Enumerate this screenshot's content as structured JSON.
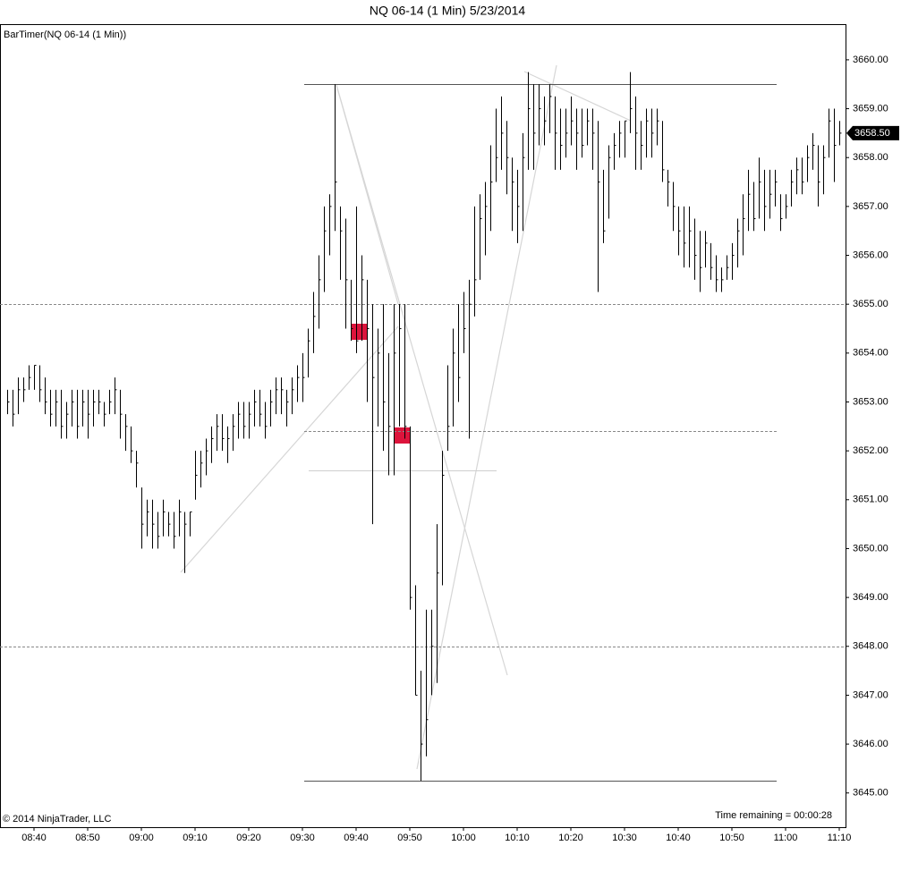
{
  "chart_data": {
    "type": "ohlc",
    "title": "NQ 06-14 (1 Min)  5/23/2014",
    "indicator": "BarTimer(NQ 06-14 (1 Min))",
    "copyright": "© 2014 NinjaTrader, LLC",
    "time_remaining": "Time remaining = 00:00:28",
    "color": "#000000",
    "ylim": [
      3644.3,
      3660.73
    ],
    "yticks": [
      {
        "value": 3645,
        "label": "3645.00"
      },
      {
        "value": 3646,
        "label": "3646.00"
      },
      {
        "value": 3647,
        "label": "3647.00"
      },
      {
        "value": 3648,
        "label": "3648.00"
      },
      {
        "value": 3649,
        "label": "3649.00"
      },
      {
        "value": 3650,
        "label": "3650.00"
      },
      {
        "value": 3651,
        "label": "3651.00"
      },
      {
        "value": 3652,
        "label": "3652.00"
      },
      {
        "value": 3653,
        "label": "3653.00"
      },
      {
        "value": 3654,
        "label": "3654.00"
      },
      {
        "value": 3655,
        "label": "3655.00"
      },
      {
        "value": 3656,
        "label": "3656.00"
      },
      {
        "value": 3657,
        "label": "3657.00"
      },
      {
        "value": 3658,
        "label": "3658.00"
      },
      {
        "value": 3659,
        "label": "3659.00"
      },
      {
        "value": 3660,
        "label": "3660.00"
      }
    ],
    "last_price": {
      "value": 3658.5,
      "label": "3658.50"
    },
    "categories": [
      null,
      null,
      null,
      null,
      null,
      "08:40",
      null,
      null,
      null,
      null,
      null,
      null,
      null,
      null,
      null,
      "08:50",
      null,
      null,
      null,
      null,
      null,
      null,
      null,
      null,
      null,
      "09:00",
      null,
      null,
      null,
      null,
      null,
      null,
      null,
      null,
      null,
      "09:10",
      null,
      null,
      null,
      null,
      null,
      null,
      null,
      null,
      null,
      "09:20",
      null,
      null,
      null,
      null,
      null,
      null,
      null,
      null,
      null,
      "09:30",
      null,
      null,
      null,
      null,
      null,
      null,
      null,
      null,
      null,
      "09:40",
      null,
      null,
      null,
      null,
      null,
      null,
      null,
      null,
      null,
      "09:50",
      null,
      null,
      null,
      null,
      null,
      null,
      null,
      null,
      null,
      "10:00",
      null,
      null,
      null,
      null,
      null,
      null,
      null,
      null,
      null,
      "10:10",
      null,
      null,
      null,
      null,
      null,
      null,
      null,
      null,
      null,
      "10:20",
      null,
      null,
      null,
      null,
      null,
      null,
      null,
      null,
      null,
      "10:30",
      null,
      null,
      null,
      null,
      null,
      null,
      null,
      null,
      null,
      "10:40",
      null,
      null,
      null,
      null,
      null,
      null,
      null,
      null,
      null,
      "10:50",
      null,
      null,
      null,
      null,
      null,
      null,
      null,
      null,
      null,
      "11:00",
      null,
      null,
      null,
      null,
      null,
      null,
      null,
      null,
      null,
      "11:10"
    ],
    "high": [
      3653.25,
      3653.25,
      3653.5,
      3653.5,
      3653.75,
      3653.75,
      3653.75,
      3653.5,
      3653.25,
      3653.25,
      3653.25,
      3653,
      3653.25,
      3653.25,
      3653.25,
      3653.25,
      3653.25,
      3653.25,
      3653,
      3653.25,
      3653.5,
      3653.25,
      3652.75,
      3652.5,
      3652,
      3651.25,
      3651,
      3651,
      3650.75,
      3651,
      3650.75,
      3650.75,
      3651,
      3650.75,
      3650.75,
      3652,
      3652,
      3652.25,
      3652.5,
      3652.75,
      3652.75,
      3652.5,
      3652.75,
      3653,
      3653,
      3653,
      3653.25,
      3653.25,
      3653,
      3653.25,
      3653.5,
      3653.5,
      3653.25,
      3653.5,
      3653.75,
      3654,
      3654.5,
      3655.25,
      3656,
      3657,
      3657.25,
      3659.5,
      3657,
      3656.75,
      3655.5,
      3657,
      3656,
      3655.5,
      3655,
      3654.5,
      3655,
      3654,
      3655,
      3655,
      3655,
      3652.5,
      3649.25,
      3647.5,
      3648.75,
      3648.75,
      3650.5,
      3652,
      3653.75,
      3654.5,
      3655,
      3655.25,
      3655.5,
      3657,
      3657.25,
      3657.5,
      3658.25,
      3659,
      3659.25,
      3658.75,
      3658,
      3657.75,
      3658.5,
      3659.75,
      3659.5,
      3659.5,
      3659.25,
      3659.5,
      3659.25,
      3659,
      3659,
      3659.25,
      3659,
      3659,
      3659,
      3659,
      3658.75,
      3657.75,
      3658.25,
      3658.5,
      3658.75,
      3658.75,
      3659.75,
      3659.25,
      3658.75,
      3659,
      3659,
      3659,
      3658.75,
      3657.75,
      3657.5,
      3657,
      3657,
      3657,
      3656.75,
      3656.5,
      3656.5,
      3656.25,
      3656,
      3655.75,
      3656,
      3656.25,
      3656.75,
      3657.25,
      3657.75,
      3657.5,
      3658,
      3657.75,
      3657.75,
      3657.75,
      3657.25,
      3657.25,
      3657.75,
      3658,
      3658,
      3658.25,
      3658.5,
      3658.25,
      3658.25,
      3659,
      3659,
      3658.75
    ],
    "low": [
      3652.75,
      3652.5,
      3652.75,
      3653,
      3653.25,
      3653.25,
      3653,
      3652.75,
      3652.5,
      3652.5,
      3652.25,
      3652.25,
      3652.5,
      3652.25,
      3652.5,
      3652.25,
      3652.5,
      3652.75,
      3652.5,
      3652.75,
      3652.75,
      3652.25,
      3652,
      3651.75,
      3651.25,
      3650,
      3650.25,
      3650,
      3650,
      3650.25,
      3650.25,
      3650,
      3650.25,
      3649.5,
      3650.25,
      3651,
      3651.25,
      3651.5,
      3651.75,
      3652,
      3652,
      3651.75,
      3652,
      3652.25,
      3652.25,
      3652.25,
      3652.5,
      3652.5,
      3652.25,
      3652.5,
      3652.75,
      3652.75,
      3652.5,
      3652.75,
      3653,
      3653,
      3653.5,
      3654,
      3654.5,
      3655.25,
      3656,
      3656.5,
      3655.5,
      3654.5,
      3654.25,
      3654,
      3654.25,
      3653,
      3650.5,
      3652.5,
      3652,
      3651.5,
      3651.5,
      3652.5,
      3652.25,
      3648.75,
      3647,
      3645.25,
      3645.75,
      3647,
      3647.25,
      3649.25,
      3652,
      3652.5,
      3653,
      3654,
      3652.25,
      3654.75,
      3655.5,
      3656,
      3656.5,
      3657.5,
      3657.75,
      3657.25,
      3656.5,
      3656.25,
      3656.5,
      3657.75,
      3657.75,
      3658.25,
      3658.25,
      3658.5,
      3657.75,
      3657.75,
      3658,
      3658.25,
      3657.75,
      3658,
      3658.25,
      3657.75,
      3655.25,
      3656.25,
      3656.75,
      3657.75,
      3658,
      3658,
      3658.5,
      3657.75,
      3657.75,
      3658,
      3658,
      3658.25,
      3657.5,
      3657,
      3656.5,
      3656,
      3655.75,
      3655.75,
      3655.5,
      3655.25,
      3655.75,
      3655.5,
      3655.25,
      3655.25,
      3655.5,
      3655.5,
      3655.75,
      3656,
      3656.5,
      3656.5,
      3656.75,
      3656.5,
      3656.75,
      3657,
      3656.5,
      3656.75,
      3657,
      3657.25,
      3657.25,
      3657.5,
      3657.75,
      3657,
      3657.25,
      3658,
      3657.5,
      3658.25
    ],
    "close": [
      3653,
      3652.75,
      3653.25,
      3653.25,
      3653.5,
      3653.75,
      3653.25,
      3653,
      3652.75,
      3653,
      3652.5,
      3652.75,
      3653,
      3652.5,
      3653,
      3652.75,
      3653,
      3653,
      3652.75,
      3653,
      3653.25,
      3652.75,
      3652.5,
      3652,
      3651.75,
      3650.5,
      3650.75,
      3650.5,
      3650.25,
      3650.75,
      3650.5,
      3650.25,
      3650.75,
      3650.5,
      3650.75,
      3651.5,
      3651.75,
      3652,
      3652.25,
      3652.5,
      3652.25,
      3652.25,
      3652.5,
      3652.75,
      3652.5,
      3652.75,
      3653,
      3652.75,
      3652.5,
      3653,
      3653.25,
      3653.25,
      3653,
      3653.25,
      3653.5,
      3653.5,
      3654.25,
      3654.75,
      3655.5,
      3656.5,
      3657,
      3657.5,
      3656.5,
      3655.5,
      3654.5,
      3654.25,
      3655.5,
      3654.5,
      3653.5,
      3654,
      3653,
      3652.5,
      3654,
      3654.5,
      3652.5,
      3649,
      3647,
      3646,
      3646.5,
      3648,
      3649.5,
      3651.5,
      3652.5,
      3654,
      3653.5,
      3654.5,
      3655,
      3655.5,
      3656.75,
      3657,
      3657.5,
      3658,
      3658.5,
      3658,
      3657.5,
      3657,
      3658,
      3659,
      3658.5,
      3659,
      3658.75,
      3659.25,
      3658.5,
      3658.25,
      3658.5,
      3658.75,
      3658.5,
      3658.25,
      3658.75,
      3658.5,
      3657.5,
      3656.5,
      3658,
      3658.25,
      3658.5,
      3658.75,
      3659,
      3658.5,
      3658.25,
      3658.75,
      3658.5,
      3658.75,
      3657.75,
      3657.5,
      3657,
      3656.5,
      3656.25,
      3656.5,
      3656,
      3655.75,
      3656.25,
      3655.75,
      3655.5,
      3655.5,
      3655.75,
      3656,
      3656.5,
      3656.75,
      3657.25,
      3656.75,
      3657.5,
      3657,
      3657.25,
      3657.5,
      3656.75,
      3657,
      3657.5,
      3657.75,
      3657.5,
      3658,
      3658.25,
      3657.5,
      3658,
      3658.75,
      3658.25,
      3658.5
    ],
    "levels": [
      {
        "value": 3659.5,
        "style": "solid"
      },
      {
        "value": 3645.25,
        "style": "solid"
      },
      {
        "value": 3655,
        "style": "dashed"
      },
      {
        "value": 3648,
        "style": "dashed"
      },
      {
        "value": 3652.4,
        "style": "dashed"
      },
      {
        "value": 3651.6,
        "style": "light"
      }
    ]
  }
}
